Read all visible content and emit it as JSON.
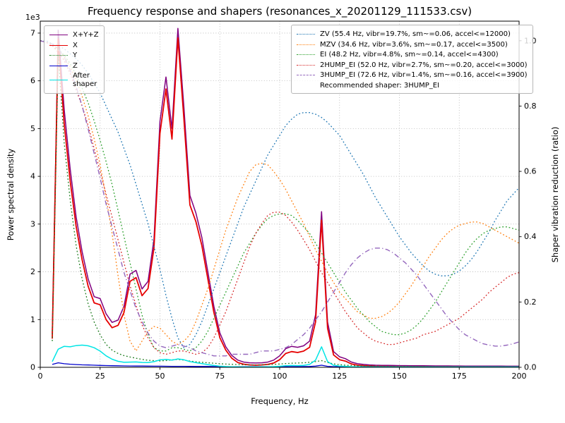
{
  "chart_data": {
    "type": "line",
    "title": "Frequency response and shapers (resonances_x_20201129_111533.csv)",
    "recommendation": "Recommended shaper: 3HUMP_EI",
    "grid": true,
    "axes": {
      "x": {
        "label": "Frequency, Hz",
        "lim": [
          0,
          200
        ],
        "ticks": [
          0,
          25,
          50,
          75,
          100,
          125,
          150,
          175,
          200
        ],
        "tick_labels": [
          "0",
          "25",
          "50",
          "75",
          "100",
          "125",
          "150",
          "175",
          "200"
        ]
      },
      "y_left": {
        "label": "Power spectral density",
        "offset_text": "1e3",
        "lim": [
          0,
          7250
        ],
        "ticks": [
          0,
          1000,
          2000,
          3000,
          4000,
          5000,
          6000,
          7000
        ],
        "tick_labels": [
          "0",
          "1",
          "2",
          "3",
          "4",
          "5",
          "6",
          "7"
        ]
      },
      "y_right": {
        "label": "Shaper vibration reduction (ratio)",
        "lim": [
          0,
          1.06
        ],
        "ticks": [
          0,
          0.2,
          0.4,
          0.6,
          0.8,
          1.0
        ],
        "tick_labels": [
          "0.0",
          "0.2",
          "0.4",
          "0.6",
          "0.8",
          "1.0"
        ]
      }
    },
    "x": [
      0,
      2.5,
      5,
      7.5,
      10,
      12.5,
      15,
      17.5,
      20,
      22.5,
      25,
      27.5,
      30,
      32.5,
      35,
      37.5,
      40,
      42.5,
      45,
      47.5,
      50,
      52.5,
      55,
      57.5,
      60,
      62.5,
      65,
      67.5,
      70,
      72.5,
      75,
      77.5,
      80,
      82.5,
      85,
      87.5,
      90,
      92.5,
      95,
      97.5,
      100,
      102.5,
      105,
      107.5,
      110,
      112.5,
      115,
      117.5,
      120,
      122.5,
      125,
      127.5,
      130,
      132.5,
      135,
      137.5,
      140,
      142.5,
      145,
      147.5,
      150,
      152.5,
      155,
      157.5,
      160,
      162.5,
      165,
      167.5,
      170,
      172.5,
      175,
      177.5,
      180,
      182.5,
      185,
      187.5,
      190,
      192.5,
      195,
      197.5,
      200
    ],
    "psd_series": [
      {
        "name": "X+Y+Z",
        "label": "X+Y+Z",
        "color": "#800080",
        "dash": "solid",
        "width": 1.5,
        "axis": "left",
        "values": [
          null,
          null,
          700,
          7060,
          5400,
          4150,
          3150,
          2420,
          1850,
          1480,
          1440,
          1120,
          940,
          990,
          1280,
          1950,
          2030,
          1640,
          1800,
          2680,
          5150,
          6080,
          5000,
          7100,
          5450,
          3600,
          3230,
          2720,
          2000,
          1280,
          720,
          430,
          250,
          150,
          110,
          95,
          90,
          95,
          110,
          150,
          240,
          390,
          440,
          420,
          450,
          550,
          1100,
          3260,
          950,
          330,
          220,
          180,
          110,
          75,
          60,
          50,
          45,
          42,
          40,
          38,
          36,
          35,
          34,
          33,
          32,
          31,
          30,
          30,
          29,
          28,
          28,
          27,
          27,
          26,
          26,
          25,
          25,
          25,
          24,
          24,
          24
        ]
      },
      {
        "name": "X",
        "label": "X",
        "color": "#e60000",
        "dash": "solid",
        "width": 1.8,
        "axis": "left",
        "values": [
          null,
          null,
          600,
          6880,
          5100,
          3900,
          2950,
          2250,
          1700,
          1350,
          1310,
          1000,
          830,
          880,
          1150,
          1800,
          1880,
          1500,
          1650,
          2500,
          4900,
          5830,
          4780,
          6900,
          5200,
          3400,
          3050,
          2550,
          1850,
          1150,
          620,
          360,
          190,
          100,
          65,
          50,
          45,
          50,
          60,
          90,
          160,
          290,
          330,
          310,
          340,
          420,
          950,
          3080,
          820,
          260,
          160,
          130,
          70,
          45,
          35,
          28,
          22,
          20,
          18,
          16,
          15,
          14,
          13,
          12,
          12,
          11,
          11,
          10,
          10,
          10,
          10,
          9,
          9,
          9,
          8,
          8,
          8,
          8,
          8,
          8,
          8
        ]
      },
      {
        "name": "Y",
        "label": "Y",
        "color": "#1a7a1a",
        "dash": "dotted",
        "width": 1.3,
        "axis": "left",
        "values": [
          null,
          null,
          550,
          6550,
          4700,
          3500,
          2550,
          1850,
          1330,
          950,
          680,
          480,
          360,
          290,
          245,
          215,
          190,
          165,
          148,
          140,
          135,
          140,
          155,
          165,
          150,
          130,
          115,
          105,
          95,
          85,
          75,
          68,
          62,
          57,
          53,
          50,
          50,
          52,
          56,
          62,
          70,
          78,
          85,
          90,
          95,
          105,
          120,
          140,
          100,
          72,
          55,
          45,
          38,
          32,
          28,
          25,
          23,
          21,
          20,
          19,
          18,
          17,
          17,
          16,
          16,
          16,
          15,
          15,
          15,
          15,
          15,
          15,
          15,
          15,
          15,
          15,
          15,
          15,
          15,
          15,
          15
        ]
      },
      {
        "name": "Z",
        "label": "Z",
        "color": "#0000cc",
        "dash": "solid",
        "width": 1.3,
        "axis": "left",
        "values": [
          null,
          null,
          60,
          95,
          75,
          65,
          58,
          52,
          48,
          44,
          40,
          37,
          34,
          32,
          30,
          28,
          27,
          26,
          25,
          24,
          23,
          22,
          21,
          21,
          20,
          19,
          18,
          18,
          17,
          16,
          15,
          14,
          14,
          13,
          13,
          12,
          12,
          12,
          12,
          12,
          13,
          14,
          15,
          15,
          16,
          18,
          25,
          45,
          20,
          14,
          12,
          11,
          10,
          10,
          9,
          9,
          9,
          9,
          9,
          9,
          8,
          8,
          8,
          8,
          8,
          8,
          8,
          8,
          8,
          8,
          8,
          8,
          8,
          8,
          8,
          8,
          8,
          8,
          8,
          8,
          8
        ]
      },
      {
        "name": "After-shaper",
        "label": "After\nshaper",
        "color": "#00e5e5",
        "dash": "solid",
        "width": 1.5,
        "axis": "left",
        "values": [
          null,
          null,
          120,
          380,
          440,
          430,
          455,
          465,
          450,
          410,
          340,
          240,
          170,
          125,
          105,
          110,
          112,
          102,
          100,
          118,
          155,
          165,
          150,
          175,
          158,
          120,
          98,
          78,
          58,
          38,
          24,
          16,
          12,
          9,
          8,
          8,
          8,
          9,
          11,
          15,
          22,
          32,
          38,
          36,
          42,
          60,
          150,
          430,
          120,
          40,
          25,
          20,
          14,
          11,
          9,
          8,
          8,
          8,
          8,
          8,
          8,
          8,
          8,
          8,
          8,
          8,
          8,
          8,
          8,
          8,
          8,
          8,
          8,
          8,
          8,
          8,
          8,
          8,
          8,
          8,
          8
        ]
      }
    ],
    "shaper_series": [
      {
        "name": "ZV",
        "label": "ZV (55.4 Hz, vibr=19.7%, sm~=0.06, accel<=12000)",
        "color": "#1f77b4",
        "dash": "dotted",
        "width": 1.3,
        "axis": "right",
        "values": [
          1.0,
          1.0,
          0.99,
          0.985,
          0.975,
          0.96,
          0.945,
          0.925,
          0.9,
          0.87,
          0.84,
          0.8,
          0.76,
          0.72,
          0.67,
          0.62,
          0.56,
          0.5,
          0.44,
          0.37,
          0.3,
          0.22,
          0.15,
          0.09,
          0.06,
          0.07,
          0.1,
          0.14,
          0.19,
          0.24,
          0.29,
          0.34,
          0.39,
          0.44,
          0.49,
          0.53,
          0.57,
          0.61,
          0.65,
          0.68,
          0.71,
          0.74,
          0.76,
          0.775,
          0.78,
          0.78,
          0.775,
          0.765,
          0.75,
          0.73,
          0.71,
          0.68,
          0.65,
          0.62,
          0.59,
          0.555,
          0.52,
          0.49,
          0.46,
          0.43,
          0.4,
          0.375,
          0.35,
          0.33,
          0.31,
          0.295,
          0.285,
          0.28,
          0.28,
          0.285,
          0.295,
          0.31,
          0.33,
          0.355,
          0.385,
          0.415,
          0.45,
          0.48,
          0.51,
          0.53,
          0.55
        ]
      },
      {
        "name": "MZV",
        "label": "MZV (34.6 Hz, vibr=3.6%, sm~=0.17, accel<=3500)",
        "color": "#ff7f0e",
        "dash": "dotted",
        "width": 1.3,
        "axis": "right",
        "values": [
          1.0,
          0.995,
          0.985,
          0.97,
          0.95,
          0.92,
          0.88,
          0.83,
          0.77,
          0.7,
          0.62,
          0.52,
          0.41,
          0.28,
          0.16,
          0.08,
          0.05,
          0.08,
          0.11,
          0.125,
          0.12,
          0.1,
          0.08,
          0.07,
          0.08,
          0.1,
          0.14,
          0.19,
          0.24,
          0.3,
          0.36,
          0.42,
          0.47,
          0.52,
          0.56,
          0.6,
          0.62,
          0.625,
          0.62,
          0.6,
          0.575,
          0.545,
          0.51,
          0.475,
          0.44,
          0.4,
          0.36,
          0.325,
          0.29,
          0.26,
          0.23,
          0.21,
          0.19,
          0.17,
          0.16,
          0.15,
          0.15,
          0.155,
          0.165,
          0.18,
          0.2,
          0.225,
          0.25,
          0.28,
          0.31,
          0.34,
          0.365,
          0.39,
          0.41,
          0.425,
          0.435,
          0.44,
          0.445,
          0.445,
          0.44,
          0.43,
          0.42,
          0.41,
          0.4,
          0.39,
          0.38
        ]
      },
      {
        "name": "EI",
        "label": "EI (48.2 Hz, vibr=4.8%, sm~=0.14, accel<=4300)",
        "color": "#2ca02c",
        "dash": "dotted",
        "width": 1.3,
        "axis": "right",
        "values": [
          1.0,
          0.995,
          0.99,
          0.975,
          0.955,
          0.93,
          0.895,
          0.855,
          0.81,
          0.755,
          0.695,
          0.63,
          0.56,
          0.48,
          0.4,
          0.32,
          0.24,
          0.16,
          0.1,
          0.06,
          0.05,
          0.05,
          0.06,
          0.06,
          0.055,
          0.05,
          0.06,
          0.08,
          0.11,
          0.15,
          0.19,
          0.23,
          0.27,
          0.31,
          0.35,
          0.38,
          0.41,
          0.435,
          0.455,
          0.465,
          0.47,
          0.47,
          0.465,
          0.45,
          0.43,
          0.41,
          0.38,
          0.35,
          0.32,
          0.29,
          0.26,
          0.23,
          0.205,
          0.18,
          0.16,
          0.14,
          0.125,
          0.11,
          0.105,
          0.1,
          0.1,
          0.105,
          0.115,
          0.13,
          0.15,
          0.175,
          0.2,
          0.23,
          0.26,
          0.29,
          0.32,
          0.35,
          0.375,
          0.395,
          0.41,
          0.42,
          0.425,
          0.43,
          0.43,
          0.425,
          0.42
        ]
      },
      {
        "name": "2HUMP_EI",
        "label": "2HUMP_EI (52.0 Hz, vibr=2.7%, sm~=0.20, accel<=3000)",
        "color": "#d62728",
        "dash": "dotted",
        "width": 1.3,
        "axis": "right",
        "values": [
          1.0,
          0.995,
          0.985,
          0.965,
          0.94,
          0.9,
          0.85,
          0.8,
          0.74,
          0.67,
          0.6,
          0.53,
          0.46,
          0.39,
          0.32,
          0.25,
          0.19,
          0.13,
          0.09,
          0.06,
          0.045,
          0.04,
          0.045,
          0.05,
          0.05,
          0.045,
          0.04,
          0.045,
          0.06,
          0.09,
          0.13,
          0.17,
          0.22,
          0.27,
          0.32,
          0.37,
          0.41,
          0.44,
          0.465,
          0.475,
          0.475,
          0.465,
          0.445,
          0.42,
          0.39,
          0.36,
          0.325,
          0.29,
          0.26,
          0.23,
          0.2,
          0.17,
          0.145,
          0.12,
          0.105,
          0.09,
          0.08,
          0.075,
          0.07,
          0.07,
          0.075,
          0.08,
          0.085,
          0.09,
          0.1,
          0.105,
          0.11,
          0.12,
          0.13,
          0.14,
          0.15,
          0.165,
          0.18,
          0.195,
          0.21,
          0.23,
          0.245,
          0.26,
          0.275,
          0.285,
          0.29
        ]
      },
      {
        "name": "3HUMP_EI",
        "label": "3HUMP_EI (72.6 Hz, vibr=1.4%, sm~=0.16, accel<=3900)",
        "color": "#9467bd",
        "dash": "dashdot",
        "width": 1.4,
        "axis": "right",
        "values": [
          1.0,
          0.995,
          0.99,
          0.975,
          0.95,
          0.91,
          0.86,
          0.8,
          0.73,
          0.655,
          0.58,
          0.5,
          0.43,
          0.36,
          0.29,
          0.235,
          0.18,
          0.14,
          0.105,
          0.08,
          0.065,
          0.06,
          0.065,
          0.07,
          0.065,
          0.06,
          0.05,
          0.045,
          0.04,
          0.035,
          0.035,
          0.035,
          0.04,
          0.04,
          0.04,
          0.04,
          0.045,
          0.05,
          0.05,
          0.05,
          0.055,
          0.06,
          0.07,
          0.085,
          0.1,
          0.12,
          0.145,
          0.17,
          0.2,
          0.23,
          0.26,
          0.29,
          0.315,
          0.335,
          0.35,
          0.36,
          0.365,
          0.365,
          0.36,
          0.35,
          0.335,
          0.32,
          0.3,
          0.28,
          0.255,
          0.23,
          0.205,
          0.18,
          0.155,
          0.135,
          0.115,
          0.1,
          0.09,
          0.08,
          0.072,
          0.068,
          0.065,
          0.065,
          0.068,
          0.072,
          0.078
        ]
      }
    ]
  }
}
